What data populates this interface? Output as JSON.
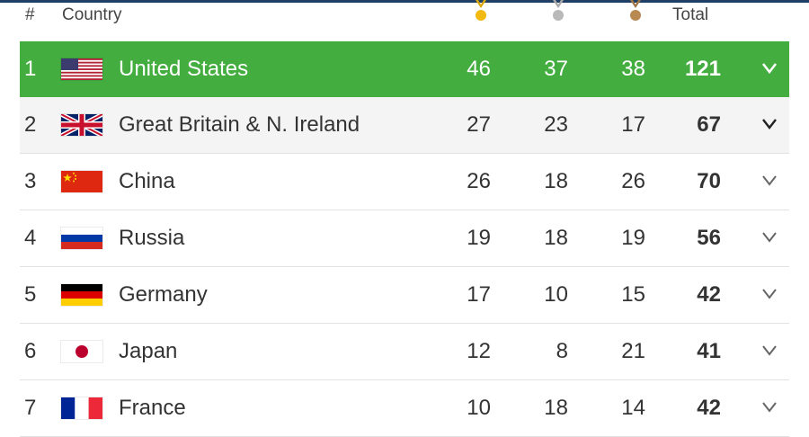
{
  "header": {
    "rank_label": "#",
    "country_label": "Country",
    "total_label": "Total"
  },
  "colors": {
    "leader_row": "#43ad3f",
    "gold": "#f2b90f",
    "silver": "#b9b9b9",
    "bronze": "#b88a52"
  },
  "rows": [
    {
      "rank": "1",
      "country": "United States",
      "flag": "us-flag-icon",
      "gold": "46",
      "silver": "37",
      "bronze": "38",
      "total": "121"
    },
    {
      "rank": "2",
      "country": "Great Britain & N. Ireland",
      "flag": "uk-flag-icon",
      "gold": "27",
      "silver": "23",
      "bronze": "17",
      "total": "67"
    },
    {
      "rank": "3",
      "country": "China",
      "flag": "china-flag-icon",
      "gold": "26",
      "silver": "18",
      "bronze": "26",
      "total": "70"
    },
    {
      "rank": "4",
      "country": "Russia",
      "flag": "russia-flag-icon",
      "gold": "19",
      "silver": "18",
      "bronze": "19",
      "total": "56"
    },
    {
      "rank": "5",
      "country": "Germany",
      "flag": "germany-flag-icon",
      "gold": "17",
      "silver": "10",
      "bronze": "15",
      "total": "42"
    },
    {
      "rank": "6",
      "country": "Japan",
      "flag": "japan-flag-icon",
      "gold": "12",
      "silver": "8",
      "bronze": "21",
      "total": "41"
    },
    {
      "rank": "7",
      "country": "France",
      "flag": "france-flag-icon",
      "gold": "10",
      "silver": "18",
      "bronze": "14",
      "total": "42"
    }
  ]
}
